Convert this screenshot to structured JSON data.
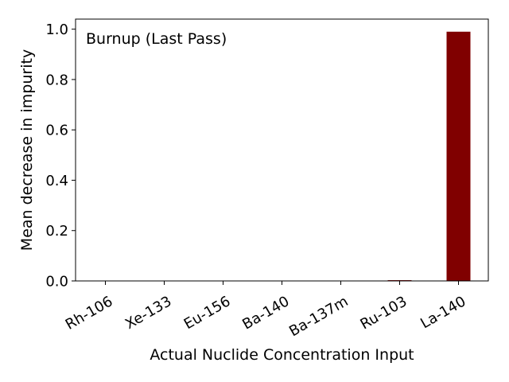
{
  "chart_data": {
    "type": "bar",
    "annotation": "Burnup (Last Pass)",
    "xlabel": "Actual Nuclide Concentration Input",
    "ylabel": "Mean decrease in impurity",
    "categories": [
      "Rh-106",
      "Xe-133",
      "Eu-156",
      "Ba-140",
      "Ba-137m",
      "Ru-103",
      "La-140"
    ],
    "values": [
      0.0,
      0.0,
      0.0,
      0.0,
      0.0,
      0.003,
      0.99
    ],
    "ylim": [
      0,
      1.04
    ],
    "yticks": [
      0.0,
      0.2,
      0.4,
      0.6,
      0.8,
      1.0
    ],
    "ytick_labels": [
      "0.0",
      "0.2",
      "0.4",
      "0.6",
      "0.8",
      "1.0"
    ],
    "bar_color": "#800000",
    "grid": false
  }
}
